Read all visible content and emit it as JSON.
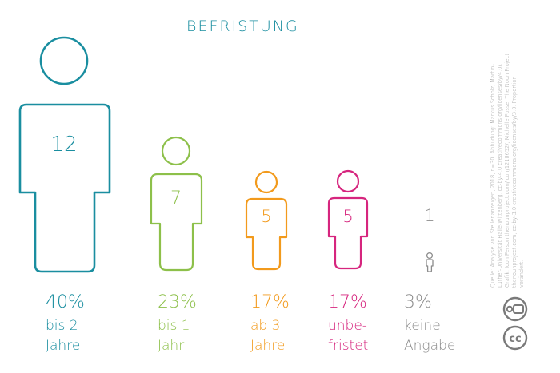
{
  "chart_data": {
    "type": "pictogram",
    "title": "BEFRISTUNG",
    "categories": [
      {
        "pct": "40%",
        "line1": "bis 2",
        "line2": "Jahre",
        "value": 12,
        "color": "#1a8ea0"
      },
      {
        "pct": "23%",
        "line1": "bis 1",
        "line2": "Jahr",
        "value": 7,
        "color": "#8dc04a"
      },
      {
        "pct": "17%",
        "line1": "ab 3",
        "line2": "Jahre",
        "value": 5,
        "color": "#f29a1c"
      },
      {
        "pct": "17%",
        "line1": "unbe-",
        "line2": "fristet",
        "value": 5,
        "color": "#d6257e"
      },
      {
        "pct": "3%",
        "line1": "keine",
        "line2": "Angabe",
        "value": 1,
        "color": "#8c8c8c"
      }
    ]
  },
  "title_color": "#1a8ea0",
  "source_text": "Quelle: Analyse von Stellenanzeigen, 2018, n=30. Abbildung: Markus Scholz, Martin-Luther-Universität Halle-Wittenberg, cc-by-4.0 creativecommons.org/licenses/by/4.0/. Grafik: Icon Person thenounproject.com/icon/1218652/, Michelle Fosse, The Noun Project thenounproject.com, cc-by-3.0 creativecommons.org/licenses/by/3.0. Proportion verändert.",
  "license_icons": [
    "attribution-icon",
    "cc-icon"
  ]
}
